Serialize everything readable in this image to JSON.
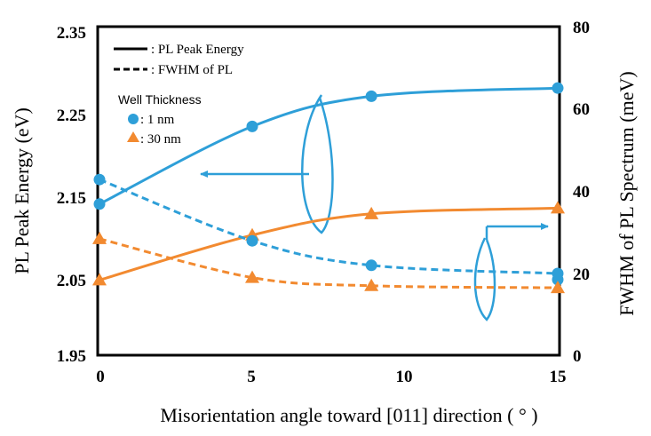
{
  "chart_data": {
    "type": "line",
    "xlabel": "Misorientation angle toward [011] direction ( ° )",
    "ylabel_left": "PL Peak Energy (eV)",
    "ylabel_right": "FWHM of PL Spectrum (meV)",
    "xlim": [
      0,
      15
    ],
    "ylim_left": [
      1.95,
      2.35
    ],
    "ylim_right": [
      0,
      80
    ],
    "x_ticks": [
      "0",
      "5",
      "10",
      "15"
    ],
    "y_left_ticks": [
      "1.95",
      "2.05",
      "2.15",
      "2.25",
      "2.35"
    ],
    "y_right_ticks": [
      "0",
      "20",
      "40",
      "60",
      "80"
    ],
    "legend": {
      "line_styles": [
        {
          "style": "solid",
          "label": ": PL Peak Energy"
        },
        {
          "style": "dashed",
          "label": ": FWHM of PL"
        }
      ],
      "heading": "Well Thickness",
      "markers": [
        {
          "marker": "circle",
          "color": "#2e9fd8",
          "label": ": 1 nm"
        },
        {
          "marker": "triangle",
          "color": "#f28a30",
          "label": ": 30 nm"
        }
      ]
    },
    "series": [
      {
        "well": "1 nm",
        "quantity": "PL Peak Energy",
        "axis": "left",
        "style": "solid",
        "marker": "circle",
        "color": "#2e9fd8",
        "points": [
          [
            0,
            2.135
          ],
          [
            5,
            2.23
          ],
          [
            8.9,
            2.267
          ],
          [
            15,
            2.277
          ]
        ]
      },
      {
        "well": "30 nm",
        "quantity": "PL Peak Energy",
        "axis": "left",
        "style": "solid",
        "marker": "triangle",
        "color": "#f28a30",
        "points": [
          [
            0,
            2.042
          ],
          [
            5,
            2.097
          ],
          [
            8.9,
            2.123
          ],
          [
            15,
            2.13
          ]
        ]
      },
      {
        "well": "1 nm",
        "quantity": "FWHM",
        "axis": "right",
        "style": "dashed",
        "marker": "circle",
        "color": "#2e9fd8",
        "points": [
          [
            0,
            43
          ],
          [
            5,
            28
          ],
          [
            8.9,
            22
          ],
          [
            15,
            20
          ]
        ]
      },
      {
        "well": "1 nm",
        "quantity": "FWHM",
        "axis": "right",
        "style": "none",
        "marker": "circle",
        "color": "#2e9fd8",
        "points": [
          [
            15,
            18.5
          ]
        ]
      },
      {
        "well": "30 nm",
        "quantity": "FWHM",
        "axis": "right",
        "style": "dashed",
        "marker": "triangle",
        "color": "#f28a30",
        "points": [
          [
            0,
            28.5
          ],
          [
            5,
            19
          ],
          [
            8.9,
            17
          ],
          [
            15,
            16.5
          ]
        ]
      }
    ]
  }
}
